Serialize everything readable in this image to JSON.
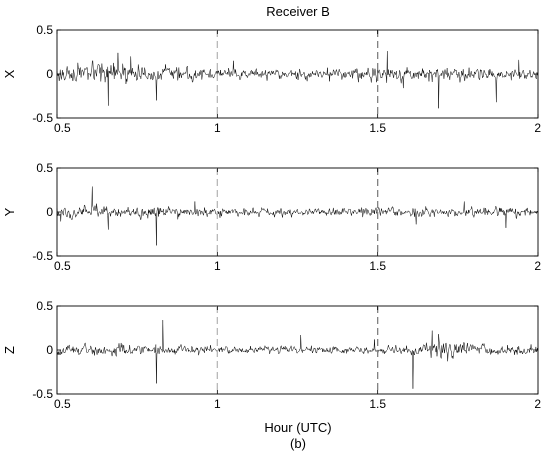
{
  "figure": {
    "title": "Receiver B",
    "xlabel": "Hour (UTC)",
    "caption": "(b)"
  },
  "chart_data": [
    {
      "type": "line",
      "ylabel": "X",
      "xlim": [
        0.5,
        2
      ],
      "ylim": [
        -0.5,
        0.5
      ],
      "xticks": [
        0.5,
        1,
        1.5,
        2
      ],
      "yticks": [
        -0.5,
        0,
        0.5
      ],
      "grid": false,
      "vlines": [
        {
          "x": 1.0,
          "color": "#b8b8b8",
          "style": "dashed"
        },
        {
          "x": 1.5,
          "color": "#808080",
          "style": "dashed"
        }
      ],
      "series_color": "#000000",
      "noise_profile": [
        [
          0.5,
          0.09
        ],
        [
          0.58,
          0.1
        ],
        [
          0.75,
          0.1
        ],
        [
          0.9,
          0.07
        ],
        [
          1.0,
          0.05
        ],
        [
          1.1,
          0.05
        ],
        [
          1.3,
          0.05
        ],
        [
          1.4,
          0.06
        ],
        [
          1.5,
          0.08
        ],
        [
          1.7,
          0.07
        ],
        [
          1.85,
          0.06
        ],
        [
          2.0,
          0.06
        ]
      ],
      "spikes": [
        [
          0.66,
          -0.36
        ],
        [
          0.69,
          0.24
        ],
        [
          0.73,
          0.2
        ],
        [
          0.81,
          -0.3
        ],
        [
          1.05,
          0.15
        ],
        [
          1.53,
          0.26
        ],
        [
          1.58,
          -0.16
        ],
        [
          1.69,
          -0.39
        ],
        [
          1.87,
          -0.32
        ],
        [
          1.94,
          0.16
        ]
      ]
    },
    {
      "type": "line",
      "ylabel": "Y",
      "xlim": [
        0.5,
        2
      ],
      "ylim": [
        -0.5,
        0.5
      ],
      "xticks": [
        0.5,
        1,
        1.5,
        2
      ],
      "yticks": [
        -0.5,
        0,
        0.5
      ],
      "grid": false,
      "vlines": [
        {
          "x": 1.0,
          "color": "#b8b8b8",
          "style": "dashed"
        },
        {
          "x": 1.5,
          "color": "#808080",
          "style": "dashed"
        }
      ],
      "series_color": "#000000",
      "noise_profile": [
        [
          0.5,
          0.07
        ],
        [
          0.7,
          0.06
        ],
        [
          0.9,
          0.05
        ],
        [
          1.1,
          0.04
        ],
        [
          1.3,
          0.04
        ],
        [
          1.5,
          0.05
        ],
        [
          1.7,
          0.05
        ],
        [
          1.9,
          0.05
        ],
        [
          2.0,
          0.05
        ]
      ],
      "spikes": [
        [
          0.61,
          0.29
        ],
        [
          0.66,
          -0.2
        ],
        [
          0.81,
          -0.38
        ],
        [
          0.93,
          0.12
        ],
        [
          1.62,
          -0.14
        ],
        [
          1.77,
          0.12
        ],
        [
          1.9,
          -0.18
        ]
      ]
    },
    {
      "type": "line",
      "ylabel": "Z",
      "xlim": [
        0.5,
        2
      ],
      "ylim": [
        -0.5,
        0.5
      ],
      "xticks": [
        0.5,
        1,
        1.5,
        2
      ],
      "yticks": [
        -0.5,
        0,
        0.5
      ],
      "grid": false,
      "vlines": [
        {
          "x": 1.0,
          "color": "#b8b8b8",
          "style": "dashed"
        },
        {
          "x": 1.5,
          "color": "#808080",
          "style": "dashed"
        }
      ],
      "series_color": "#000000",
      "noise_profile": [
        [
          0.5,
          0.06
        ],
        [
          0.7,
          0.06
        ],
        [
          0.9,
          0.05
        ],
        [
          1.1,
          0.04
        ],
        [
          1.3,
          0.04
        ],
        [
          1.5,
          0.04
        ],
        [
          1.6,
          0.05
        ],
        [
          1.7,
          0.09
        ],
        [
          1.8,
          0.06
        ],
        [
          2.0,
          0.05
        ]
      ],
      "spikes": [
        [
          0.81,
          -0.38
        ],
        [
          0.83,
          0.34
        ],
        [
          1.26,
          0.17
        ],
        [
          1.49,
          0.12
        ],
        [
          1.61,
          -0.44
        ],
        [
          1.67,
          0.22
        ],
        [
          1.69,
          0.18
        ]
      ]
    }
  ]
}
